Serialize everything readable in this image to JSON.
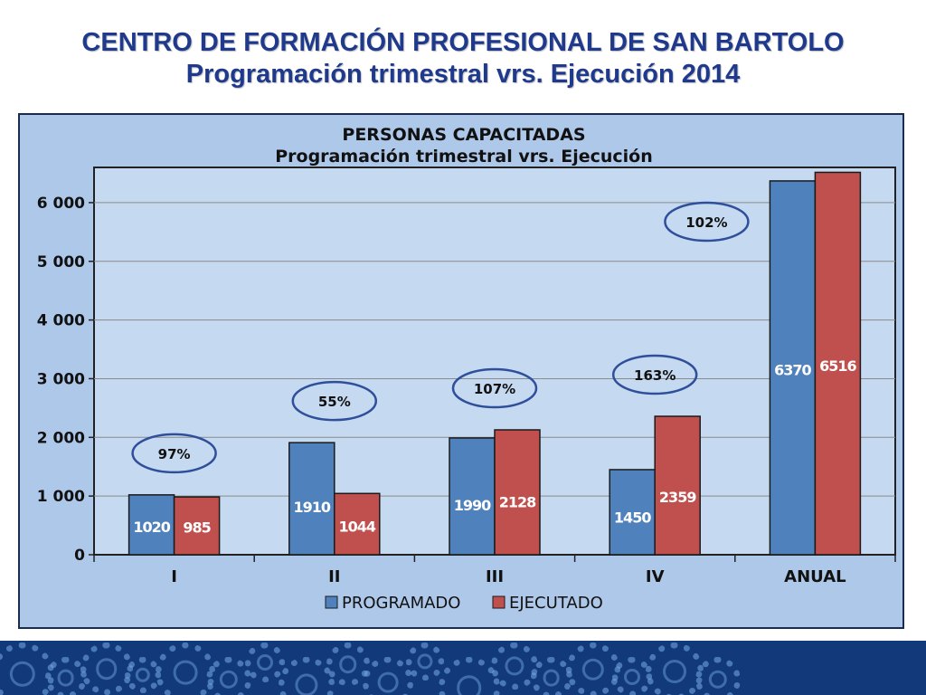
{
  "slide": {
    "title_line1": "CENTRO DE FORMACIÓN PROFESIONAL  DE SAN BARTOLO",
    "title_line2": "Programación trimestral vrs. Ejecución 2014"
  },
  "chart_data": {
    "type": "bar",
    "title": "PERSONAS CAPACITADAS",
    "subtitle": "Programación trimestral vrs. Ejecución",
    "categories": [
      "I",
      "II",
      "III",
      "IV",
      "ANUAL"
    ],
    "series": [
      {
        "name": "PROGRAMADO",
        "color": "#4f81bd",
        "values": [
          1020,
          1910,
          1990,
          1450,
          6370
        ],
        "labels": [
          "1020",
          "1910",
          "1990",
          "1450",
          "6370"
        ]
      },
      {
        "name": "EJECUTADO",
        "color": "#c0504d",
        "values": [
          985,
          1044,
          2128,
          2359,
          6516
        ],
        "labels": [
          "985",
          "1044",
          "2128",
          "2359",
          "6516"
        ]
      }
    ],
    "percentages": [
      "97%",
      "55%",
      "107%",
      "163%",
      "102%"
    ],
    "ylim": [
      0,
      6600
    ],
    "yticks": [
      0,
      1000,
      2000,
      3000,
      4000,
      5000,
      6000
    ],
    "ytick_labels": [
      "0",
      "1 000",
      "2 000",
      "3 000",
      "4 000",
      "5 000",
      "6 000"
    ],
    "grid": true,
    "legend": "bottom",
    "plot_bg": "#c5d9f1",
    "frame_bg": "#aec8ea"
  }
}
